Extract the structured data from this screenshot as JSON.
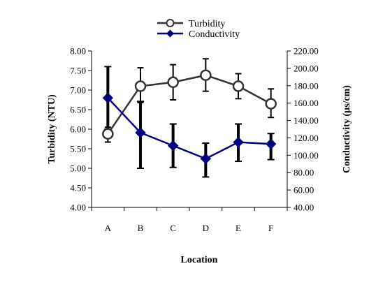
{
  "chart_data": {
    "type": "line",
    "categories": [
      "A",
      "B",
      "C",
      "D",
      "E",
      "F"
    ],
    "xlabel": "Location",
    "y_left": {
      "label": "Turbidity (NTU)",
      "range": [
        4.0,
        8.0
      ],
      "ticks": [
        "4.00",
        "4.50",
        "5.00",
        "5.50",
        "6.00",
        "6.50",
        "7.00",
        "7.50",
        "8.00"
      ]
    },
    "y_right": {
      "label": "Conductivity (µs/cm)",
      "range": [
        40,
        220
      ],
      "ticks": [
        "40.00",
        "60.00",
        "80.00",
        "100.00",
        "120.00",
        "140.00",
        "160.00",
        "180.00",
        "200.00",
        "220.00"
      ]
    },
    "series": [
      {
        "name": "Turbidity",
        "axis": "left",
        "marker": "circle",
        "line_color": "#333333",
        "values": [
          5.88,
          7.1,
          7.2,
          7.38,
          7.1,
          6.65
        ],
        "err_low": [
          5.67,
          6.68,
          6.75,
          6.97,
          6.78,
          6.3
        ],
        "err_high": [
          6.05,
          7.57,
          7.65,
          7.8,
          7.42,
          7.03
        ]
      },
      {
        "name": "Conductivity",
        "axis": "right",
        "marker": "diamond",
        "line_color": "#000080",
        "values": [
          166,
          126,
          111,
          96,
          115,
          113
        ],
        "err_low": [
          130,
          85,
          86,
          75,
          93,
          95
        ],
        "err_high": [
          202,
          162,
          136,
          114,
          136,
          125
        ]
      }
    ],
    "legend_position": "top-center",
    "grid": false
  }
}
